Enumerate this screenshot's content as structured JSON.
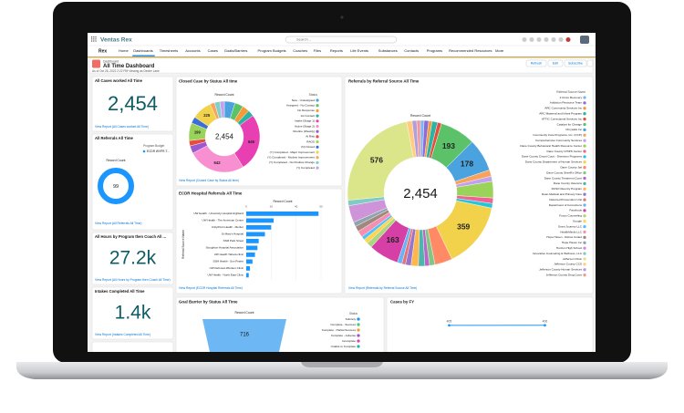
{
  "app": {
    "logo": "Ventas Rex",
    "search": "Search...",
    "app_name": "Rex",
    "tabs": [
      "Home",
      "Dashboards",
      "Timesheets",
      "Accounts",
      "Cases",
      "Goals/Barriers",
      "Program Budgets",
      "Coaches",
      "Files",
      "Reports",
      "Life Events",
      "Substances",
      "Contacts",
      "Programs",
      "Recommended Resources",
      "More"
    ]
  },
  "header": {
    "label": "Dashboard",
    "title": "All Time Dashboard",
    "subtitle": "As of Oct 26, 2022 2:22 PM·Viewing as Dexter Lane",
    "buttons": [
      "Refresh",
      "Edit",
      "Subscribe"
    ]
  },
  "metrics": [
    {
      "title": "All Cases worked All Time",
      "value": "2,454",
      "link": "View Report (All Cases worked All Time)"
    },
    {
      "title": "All Hours by Program then Coach All ...",
      "value": "27.2k",
      "link": "View Report (All Hours by Program then Coach All Time)"
    },
    {
      "title": "Intakes Completed All Time",
      "value": "1.4k",
      "link": "View Report (Intakes Completed All Time)"
    }
  ],
  "referrals_gauge": {
    "title": "All Referrals All Time",
    "legend_title": "Program Budget",
    "legend": [
      "ECDR WVPR-T..."
    ],
    "axis_label": "Record Count",
    "value": 99,
    "color": "#1b96ff",
    "link": "View Report (All Referrals All Time)"
  },
  "closed_case": {
    "title": "Closed Case by Status All time",
    "axis_label": "Record Count",
    "total": "2,454",
    "legend_title": "Status",
    "names": [
      "New - Unassigned",
      "Assigned - No Contact",
      "No Response",
      "1st Contact",
      "Intake (Stage 1)",
      "Active (Stage 2)",
      "Routine (Weekly)",
      "At Risk",
      "RAOS",
      "(N) Closed",
      "(Y) Completed - Major Improvement",
      "(Y) Completed - Modest Improvement",
      "(Y) Completed - No Positive Change",
      "(Y) Completed"
    ],
    "values": [
      120,
      95,
      80,
      70,
      646,
      642,
      85,
      60,
      199,
      72,
      225,
      50,
      60,
      50
    ],
    "colors": [
      "#4aa3df",
      "#5cc26a",
      "#f29b38",
      "#2bb3a3",
      "#e83fb3",
      "#f78fd0",
      "#9b59d0",
      "#e74c3c",
      "#9ad35a",
      "#3b6fd6",
      "#f2d14b",
      "#f7a35c",
      "#7fd1c8",
      "#c2a0f0"
    ],
    "link": "View Report (Closed Case by Status All time)"
  },
  "ecdr": {
    "title": "ECDR Hospital Referrals All Time",
    "axis_label": "Record Count",
    "vertical_label": "Referral Source Name",
    "categories": [
      "UW Health - University Hospital Highland",
      "UW Health - The American Center",
      "UnityPoint Health - Meriter",
      "St Mary's Hospital",
      "SSM Park Street",
      "Stoughton Hospital Association",
      "UW Health Yahara clinic",
      "SSM Health - Sun Prairie",
      "UW Deforest-Windsor Clinic",
      "UW Health - North East Clinic"
    ],
    "values": [
      58,
      22,
      20,
      15,
      10,
      9,
      7,
      5,
      3,
      2
    ],
    "xlim": [
      0,
      60
    ],
    "xticks": [
      0,
      20,
      40,
      60
    ],
    "color": "#1b96ff",
    "link": "View Report (ECDR Hospital Referrals All Time)"
  },
  "referral_source": {
    "title": "Referrals by Referral Source All Time",
    "axis_label": "Record Count",
    "total": "2,454",
    "legend_title": "Referral Source Name",
    "names": [
      "2 Cinco Recovery",
      "Addiction Resource Team",
      "ARC Community Services Inc",
      "ARC Maternal and Infant Program",
      "ATTIC Correctional Services Inc",
      "Catalyst for Change",
      "Chrysalis Inc",
      "Community Care Programs, Inc. (CCP)",
      "Comprehensive Community Services",
      "Dane County Behavioral Health Resource Center",
      "Dane County CHIPS Center",
      "Dane County Circuit Court - Diversion Programs",
      "Dane County Department of Human Services",
      "Dane County Jail",
      "Dane County Sheriff's Office",
      "Dane County Treatment Court",
      "Dane County Veterans",
      "DCSO Reentry Program",
      "Dean Medical and Primary Care",
      "Deferred Prosecution Unit",
      "Department of Corrections",
      "Facebook",
      "Focus Counseling",
      "Google",
      "Grant Journey LLC",
      "HealthMinds LLC",
      "Hope Haven - Rebos United",
      "Hope Haven Inc",
      "Horizon High School",
      "Innovative Counseling & Wellness, LLC",
      "Jefferson Clinic",
      "Jefferson County CCS",
      "Jefferson County Human Services",
      "Jefferson County Drug Court"
    ],
    "values": [
      20,
      25,
      18,
      30,
      22,
      193,
      178,
      35,
      28,
      90,
      30,
      25,
      359,
      95,
      30,
      25,
      35,
      40,
      30,
      20,
      25,
      163,
      30,
      25,
      20,
      35,
      30,
      25,
      92,
      30,
      576,
      30,
      25,
      20
    ],
    "colors": [
      "#7ab6f5",
      "#8e6bd6",
      "#f29b38",
      "#2bb3a3",
      "#e74c3c",
      "#5cc26a",
      "#4aa3df",
      "#f7a35c",
      "#c2a0f0",
      "#9ad35a",
      "#f06292",
      "#26c6da",
      "#f2d14b",
      "#ff8a65",
      "#81c784",
      "#ba68c8",
      "#4db6ac",
      "#ffb74d",
      "#9575cd",
      "#e57373",
      "#64b5f6",
      "#d63fa6",
      "#aed581",
      "#ffd54f",
      "#4fc3f7",
      "#f48fb1",
      "#a1887f",
      "#90a4ae",
      "#ce93d8",
      "#80cbc4",
      "#dbe58a",
      "#ffcc80",
      "#b39ddb",
      "#ef9a9a"
    ],
    "link": "View Report (Referrals by Referral Source All Time)"
  },
  "goal_barrier": {
    "title": "Goal Barrier by Status All Time",
    "axis_label": "Record Count",
    "legend_title": "Status",
    "legend": [
      "Sobriety",
      "Complete - Success",
      "Complete - Partial Success",
      "Complete - Adverse",
      "Incomplete",
      "Unable to Complete"
    ],
    "colors": [
      "#1b96ff",
      "#5cc26a",
      "#f29b38",
      "#9b59d0",
      "#e83fb3",
      "#2bb3a3"
    ],
    "value": 716
  },
  "cases_fy": {
    "title": "Cases by FY",
    "categories": [
      null,
      null
    ],
    "values": [
      405,
      406
    ],
    "ylim": [
      0,
      500
    ],
    "color": "#1b96ff"
  }
}
